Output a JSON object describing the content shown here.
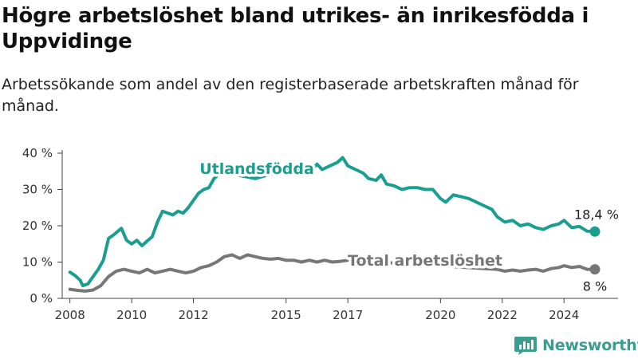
{
  "title": "Högre arbetslöshet bland utrikes- än inrikesfödda i Uppvidinge",
  "subtitle": "Arbetssökande som andel av den registerbaserade arbetskraften månad för månad.",
  "brand": {
    "name": "Newsworthy",
    "icon": "newsworthy-logo-icon"
  },
  "colors": {
    "utlandsfodda": "#1a9e8f",
    "total": "#777777",
    "axis": "#444444",
    "grid": "#dddddd"
  },
  "chart_data": {
    "type": "line",
    "xlabel": "",
    "ylabel": "",
    "ylim": [
      0,
      40
    ],
    "y_ticks": [
      "0 %",
      "10 %",
      "20 %",
      "30 %",
      "40 %"
    ],
    "y_tick_values": [
      0,
      10,
      20,
      30,
      40
    ],
    "x_range": [
      "2007-10",
      "2025-10"
    ],
    "x_ticks": [
      "2008",
      "2010",
      "2012",
      "2015",
      "2017",
      "2020",
      "2022",
      "2024"
    ],
    "x_tick_dates": [
      "2008-01",
      "2010-01",
      "2012-01",
      "2015-01",
      "2017-01",
      "2020-01",
      "2022-01",
      "2024-01"
    ],
    "grid": false,
    "series": [
      {
        "name": "Utlandsfödda",
        "end_label": "18,4 %",
        "points": [
          [
            "2008-01",
            7.2
          ],
          [
            "2008-03",
            6.3
          ],
          [
            "2008-05",
            5.0
          ],
          [
            "2008-06",
            3.5
          ],
          [
            "2008-08",
            4.0
          ],
          [
            "2008-10",
            6.0
          ],
          [
            "2008-12",
            8.0
          ],
          [
            "2009-02",
            10.5
          ],
          [
            "2009-04",
            16.5
          ],
          [
            "2009-06",
            17.5
          ],
          [
            "2009-09",
            19.3
          ],
          [
            "2009-11",
            16.0
          ],
          [
            "2010-01",
            15.0
          ],
          [
            "2010-03",
            16.0
          ],
          [
            "2010-05",
            14.5
          ],
          [
            "2010-07",
            15.8
          ],
          [
            "2010-09",
            17.0
          ],
          [
            "2010-11",
            21.0
          ],
          [
            "2011-01",
            24.0
          ],
          [
            "2011-03",
            23.5
          ],
          [
            "2011-05",
            23.0
          ],
          [
            "2011-07",
            24.0
          ],
          [
            "2011-09",
            23.5
          ],
          [
            "2011-11",
            25.0
          ],
          [
            "2012-01",
            27.0
          ],
          [
            "2012-03",
            29.0
          ],
          [
            "2012-05",
            30.0
          ],
          [
            "2012-07",
            30.5
          ],
          [
            "2012-09",
            33.0
          ],
          [
            "2012-12",
            35.0
          ],
          [
            "2013-06",
            34.0
          ],
          [
            "2014-01",
            33.0
          ],
          [
            "2014-06",
            34.0
          ],
          [
            "2015-01",
            35.0
          ],
          [
            "2015-06",
            35.5
          ],
          [
            "2015-10",
            34.5
          ],
          [
            "2016-01",
            37.0
          ],
          [
            "2016-03",
            35.5
          ],
          [
            "2016-06",
            36.5
          ],
          [
            "2016-09",
            37.5
          ],
          [
            "2016-11",
            38.8
          ],
          [
            "2017-01",
            36.5
          ],
          [
            "2017-04",
            35.5
          ],
          [
            "2017-07",
            34.5
          ],
          [
            "2017-09",
            33.0
          ],
          [
            "2017-12",
            32.5
          ],
          [
            "2018-02",
            34.0
          ],
          [
            "2018-04",
            31.5
          ],
          [
            "2018-07",
            31.0
          ],
          [
            "2018-10",
            30.0
          ],
          [
            "2019-01",
            30.5
          ],
          [
            "2019-04",
            30.5
          ],
          [
            "2019-07",
            30.0
          ],
          [
            "2019-10",
            30.0
          ],
          [
            "2020-01",
            27.5
          ],
          [
            "2020-03",
            26.5
          ],
          [
            "2020-06",
            28.5
          ],
          [
            "2020-09",
            28.0
          ],
          [
            "2020-12",
            27.5
          ],
          [
            "2021-03",
            26.5
          ],
          [
            "2021-06",
            25.5
          ],
          [
            "2021-09",
            24.5
          ],
          [
            "2021-11",
            22.5
          ],
          [
            "2022-02",
            21.0
          ],
          [
            "2022-05",
            21.5
          ],
          [
            "2022-08",
            20.0
          ],
          [
            "2022-11",
            20.5
          ],
          [
            "2023-02",
            19.5
          ],
          [
            "2023-05",
            19.0
          ],
          [
            "2023-08",
            20.0
          ],
          [
            "2023-11",
            20.5
          ],
          [
            "2024-01",
            21.5
          ],
          [
            "2024-04",
            19.5
          ],
          [
            "2024-07",
            19.8
          ],
          [
            "2024-10",
            18.5
          ],
          [
            "2025-01",
            18.4
          ]
        ]
      },
      {
        "name": "Total arbetslöshet",
        "end_label": "8 %",
        "points": [
          [
            "2008-01",
            2.5
          ],
          [
            "2008-04",
            2.2
          ],
          [
            "2008-07",
            2.0
          ],
          [
            "2008-10",
            2.3
          ],
          [
            "2009-01",
            3.5
          ],
          [
            "2009-04",
            6.0
          ],
          [
            "2009-07",
            7.5
          ],
          [
            "2009-10",
            8.0
          ],
          [
            "2010-01",
            7.5
          ],
          [
            "2010-04",
            7.0
          ],
          [
            "2010-07",
            8.0
          ],
          [
            "2010-10",
            7.0
          ],
          [
            "2011-01",
            7.5
          ],
          [
            "2011-04",
            8.0
          ],
          [
            "2011-07",
            7.5
          ],
          [
            "2011-10",
            7.0
          ],
          [
            "2012-01",
            7.5
          ],
          [
            "2012-04",
            8.5
          ],
          [
            "2012-07",
            9.0
          ],
          [
            "2012-10",
            10.0
          ],
          [
            "2013-01",
            11.5
          ],
          [
            "2013-04",
            12.0
          ],
          [
            "2013-07",
            11.0
          ],
          [
            "2013-10",
            12.0
          ],
          [
            "2014-01",
            11.5
          ],
          [
            "2014-04",
            11.0
          ],
          [
            "2014-07",
            10.8
          ],
          [
            "2014-10",
            11.0
          ],
          [
            "2015-01",
            10.5
          ],
          [
            "2015-04",
            10.5
          ],
          [
            "2015-07",
            10.0
          ],
          [
            "2015-10",
            10.5
          ],
          [
            "2016-01",
            10.0
          ],
          [
            "2016-04",
            10.5
          ],
          [
            "2016-07",
            10.0
          ],
          [
            "2016-10",
            10.2
          ],
          [
            "2017-01",
            10.5
          ],
          [
            "2021-11",
            8.0
          ],
          [
            "2022-02",
            7.5
          ],
          [
            "2022-05",
            7.8
          ],
          [
            "2022-08",
            7.5
          ],
          [
            "2022-11",
            7.8
          ],
          [
            "2023-02",
            8.0
          ],
          [
            "2023-05",
            7.5
          ],
          [
            "2023-08",
            8.2
          ],
          [
            "2023-11",
            8.5
          ],
          [
            "2024-01",
            9.0
          ],
          [
            "2024-04",
            8.5
          ],
          [
            "2024-07",
            8.8
          ],
          [
            "2024-10",
            8.0
          ],
          [
            "2025-01",
            8.0
          ]
        ]
      }
    ]
  }
}
